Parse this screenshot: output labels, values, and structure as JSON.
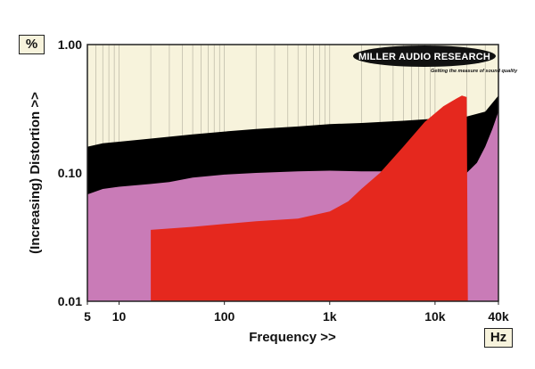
{
  "chart_data": {
    "type": "area",
    "xlabel": "Frequency >>",
    "ylabel": "(Increasing) Distortion >>",
    "x_unit": "Hz",
    "y_unit": "%",
    "x_scale": "log",
    "y_scale": "log",
    "xlim": [
      5,
      40000
    ],
    "ylim": [
      0.01,
      1.0
    ],
    "grid": true,
    "x_ticks": [
      {
        "value": 5,
        "label": "5"
      },
      {
        "value": 10,
        "label": "10"
      },
      {
        "value": 100,
        "label": "100"
      },
      {
        "value": 1000,
        "label": "1k"
      },
      {
        "value": 10000,
        "label": "10k"
      },
      {
        "value": 40000,
        "label": "40k"
      }
    ],
    "y_ticks": [
      {
        "value": 1.0,
        "label": "1.00"
      },
      {
        "value": 0.1,
        "label": "0.10"
      },
      {
        "value": 0.01,
        "label": "0.01"
      }
    ],
    "series": [
      {
        "color": "#000000",
        "points": [
          [
            5,
            0.16
          ],
          [
            7,
            0.17
          ],
          [
            10,
            0.175
          ],
          [
            20,
            0.185
          ],
          [
            50,
            0.2
          ],
          [
            100,
            0.21
          ],
          [
            200,
            0.22
          ],
          [
            500,
            0.23
          ],
          [
            1000,
            0.24
          ],
          [
            2000,
            0.245
          ],
          [
            5000,
            0.255
          ],
          [
            10000,
            0.265
          ],
          [
            20000,
            0.275
          ],
          [
            30000,
            0.3
          ],
          [
            40000,
            0.4
          ]
        ]
      },
      {
        "color": "#c97bb7",
        "points": [
          [
            5,
            0.068
          ],
          [
            7,
            0.075
          ],
          [
            10,
            0.078
          ],
          [
            20,
            0.082
          ],
          [
            30,
            0.085
          ],
          [
            50,
            0.092
          ],
          [
            100,
            0.097
          ],
          [
            200,
            0.1
          ],
          [
            500,
            0.103
          ],
          [
            1000,
            0.104
          ],
          [
            2000,
            0.103
          ],
          [
            5000,
            0.103
          ],
          [
            10000,
            0.105
          ],
          [
            20000,
            0.1
          ],
          [
            25000,
            0.12
          ],
          [
            30000,
            0.16
          ],
          [
            35000,
            0.22
          ],
          [
            40000,
            0.3
          ]
        ]
      },
      {
        "color": "#e5281e",
        "points": [
          [
            20,
            0.036
          ],
          [
            50,
            0.038
          ],
          [
            100,
            0.04
          ],
          [
            200,
            0.042
          ],
          [
            500,
            0.044
          ],
          [
            1000,
            0.05
          ],
          [
            1500,
            0.06
          ],
          [
            2000,
            0.075
          ],
          [
            3000,
            0.1
          ],
          [
            5000,
            0.16
          ],
          [
            8000,
            0.25
          ],
          [
            12000,
            0.33
          ],
          [
            16000,
            0.38
          ],
          [
            18000,
            0.4
          ],
          [
            20000,
            0.39
          ],
          [
            20500,
            0.01
          ]
        ]
      }
    ]
  },
  "logo": {
    "main_text": "MILLER AUDIO RESEARCH",
    "tagline": "Getting the measure of sound quality"
  },
  "colors": {
    "plot_background": "#f7f3dc",
    "grid": "#b9b6a4"
  }
}
